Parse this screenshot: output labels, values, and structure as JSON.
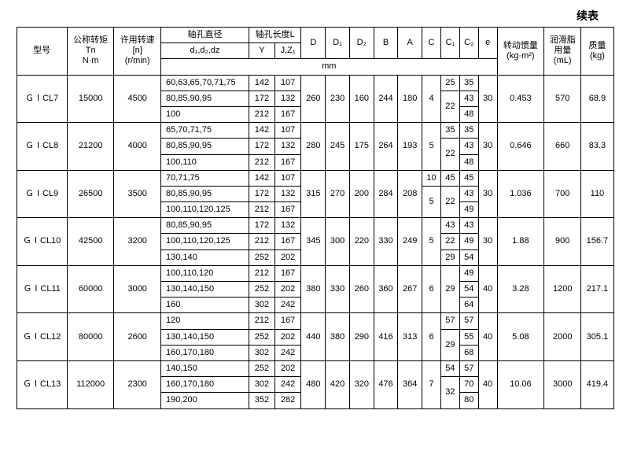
{
  "caption": "续表",
  "header": {
    "model": "型号",
    "nominal_torque": "公称转矩\nTn\nN·m",
    "allow_speed": "许用转速\n[n]\n(r/min)",
    "bore_dia": "轴孔直径",
    "bore_dia_sub": "d₁,d₂,dz",
    "bore_len": "轴孔长度L",
    "Y": "Y",
    "JZ": "J,Z₁",
    "D": "D",
    "D1": "D₁",
    "D2": "D₂",
    "B": "B",
    "A": "A",
    "C": "C",
    "C1": "C₁",
    "C2": "C₂",
    "e": "e",
    "inertia": "转动惯量\n(kg·m²)",
    "grease": "润滑脂\n用量\n(mL)",
    "mass": "质量\n(kg)",
    "mm": "mm"
  },
  "rows": [
    {
      "model": "ＧⅠCL7",
      "Tn": "15000",
      "n": "4500",
      "D": "260",
      "D1": "230",
      "D2": "160",
      "B": "244",
      "A": "180",
      "C": "4",
      "e": "30",
      "inertia": "0.453",
      "grease": "570",
      "mass": "68.9",
      "sub": [
        {
          "d": "60,63,65,70,71,75",
          "Y": "142",
          "JZ": "107",
          "C1": "25",
          "C2": "35",
          "c1rows": 1
        },
        {
          "d": "80,85,90,95",
          "Y": "172",
          "JZ": "132",
          "C1": "22",
          "C2": "43",
          "c1rows": 2
        },
        {
          "d": "100",
          "Y": "212",
          "JZ": "167",
          "C1": null,
          "C2": "48"
        }
      ]
    },
    {
      "model": "ＧⅠCL8",
      "Tn": "21200",
      "n": "4000",
      "D": "280",
      "D1": "245",
      "D2": "175",
      "B": "264",
      "A": "193",
      "C": "5",
      "e": "30",
      "inertia": "0.646",
      "grease": "660",
      "mass": "83.3",
      "sub": [
        {
          "d": "65,70,71,75",
          "Y": "142",
          "JZ": "107",
          "C1": "35",
          "C2": "35",
          "c1rows": 1
        },
        {
          "d": "80,85,90,95",
          "Y": "172",
          "JZ": "132",
          "C1": "22",
          "C2": "43",
          "c1rows": 2
        },
        {
          "d": "100,110",
          "Y": "212",
          "JZ": "167",
          "C1": null,
          "C2": "48"
        }
      ]
    },
    {
      "model": "ＧⅠCL9",
      "Tn": "26500",
      "n": "3500",
      "D": "315",
      "D1": "270",
      "D2": "200",
      "B": "284",
      "A": "208",
      "e": "30",
      "inertia": "1.036",
      "grease": "700",
      "mass": "110",
      "crow1": "10",
      "crow2": "5",
      "sub": [
        {
          "d": "70,71,75",
          "Y": "142",
          "JZ": "107",
          "C1": "45",
          "C2": "45",
          "c1rows": 1
        },
        {
          "d": "80,85,90,95",
          "Y": "172",
          "JZ": "132",
          "C1": "22",
          "C2": "43",
          "c1rows": 2
        },
        {
          "d": "100,110,120,125",
          "Y": "212",
          "JZ": "167",
          "C1": null,
          "C2": "49"
        }
      ]
    },
    {
      "model": "ＧⅠCL10",
      "Tn": "42500",
      "n": "3200",
      "D": "345",
      "D1": "300",
      "D2": "220",
      "B": "330",
      "A": "249",
      "C": "5",
      "e": "30",
      "inertia": "1.88",
      "grease": "900",
      "mass": "156.7",
      "sub": [
        {
          "d": "80,85,90,95",
          "Y": "172",
          "JZ": "132",
          "C1": "43",
          "C2": "43",
          "c1rows": 1
        },
        {
          "d": "100,110,120,125",
          "Y": "212",
          "JZ": "167",
          "C1": "22",
          "C2": "49",
          "c1rows": 1
        },
        {
          "d": "130,140",
          "Y": "252",
          "JZ": "202",
          "C1": "29",
          "C2": "54",
          "c1rows": 1
        }
      ]
    },
    {
      "model": "ＧⅠCL11",
      "Tn": "60000",
      "n": "3000",
      "D": "380",
      "D1": "330",
      "D2": "260",
      "B": "360",
      "A": "267",
      "C": "6",
      "e": "40",
      "inertia": "3.28",
      "grease": "1200",
      "mass": "217.1",
      "sub": [
        {
          "d": "100,110,120",
          "Y": "212",
          "JZ": "167",
          "C1": "29",
          "C2": "49",
          "c1rows": 3
        },
        {
          "d": "130,140,150",
          "Y": "252",
          "JZ": "202",
          "C1": null,
          "C2": "54"
        },
        {
          "d": "160",
          "Y": "302",
          "JZ": "242",
          "C1": null,
          "C2": "64"
        }
      ]
    },
    {
      "model": "ＧⅠCL12",
      "Tn": "80000",
      "n": "2600",
      "D": "440",
      "D1": "380",
      "D2": "290",
      "B": "416",
      "A": "313",
      "C": "6",
      "e": "40",
      "inertia": "5.08",
      "grease": "2000",
      "mass": "305.1",
      "sub": [
        {
          "d": "120",
          "Y": "212",
          "JZ": "167",
          "C1": "57",
          "C2": "57",
          "c1rows": 1
        },
        {
          "d": "130,140,150",
          "Y": "252",
          "JZ": "202",
          "C1": "29",
          "C2": "55",
          "c1rows": 2
        },
        {
          "d": "160,170,180",
          "Y": "302",
          "JZ": "242",
          "C1": null,
          "C2": "68"
        }
      ]
    },
    {
      "model": "ＧⅠCL13",
      "Tn": "112000",
      "n": "2300",
      "D": "480",
      "D1": "420",
      "D2": "320",
      "B": "476",
      "A": "364",
      "C": "7",
      "e": "40",
      "inertia": "10.06",
      "grease": "3000",
      "mass": "419.4",
      "sub": [
        {
          "d": "140,150",
          "Y": "252",
          "JZ": "202",
          "C1": "54",
          "C2": "57",
          "c1rows": 1
        },
        {
          "d": "160,170,180",
          "Y": "302",
          "JZ": "242",
          "C1": "32",
          "C2": "70",
          "c1rows": 2
        },
        {
          "d": "190,200",
          "Y": "352",
          "JZ": "282",
          "C1": null,
          "C2": "80"
        }
      ]
    }
  ]
}
